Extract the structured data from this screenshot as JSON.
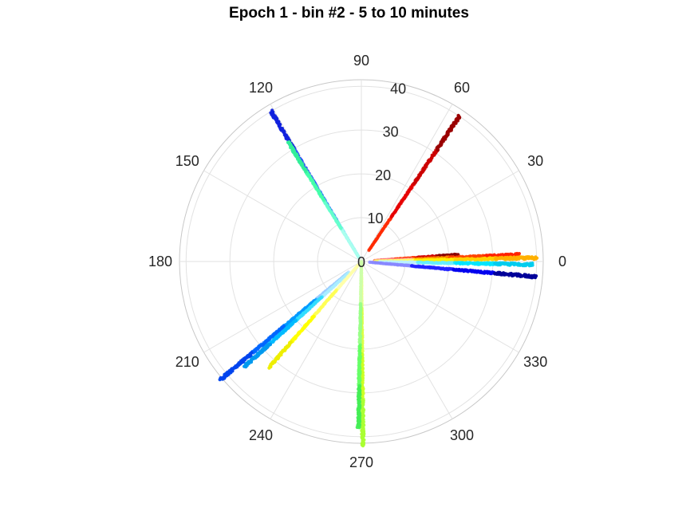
{
  "chart_data": {
    "type": "scatter",
    "coordinate_system": "polar",
    "title": "Epoch 1 - bin #2 - 5 to 10 minutes",
    "theta_ticks": [
      "0",
      "30",
      "60",
      "90",
      "120",
      "150",
      "180",
      "210",
      "240",
      "270",
      "300",
      "330"
    ],
    "r_ticks": [
      "0",
      "10",
      "20",
      "30",
      "40"
    ],
    "r_lim": [
      0,
      40
    ],
    "theta_unit": "degrees",
    "grid": true,
    "colormap": "jet",
    "series": [
      {
        "theta": 56,
        "r_range": [
          3,
          40
        ],
        "color": "#cc0000",
        "colors": [
          "#ff2a00",
          "#e60000",
          "#cc0000",
          "#9a0000"
        ]
      },
      {
        "theta": 4,
        "r_range": [
          3,
          22
        ],
        "color": "#ff2000",
        "colors": [
          "#ff6666",
          "#ff3300",
          "#d00000",
          "#8a0000"
        ]
      },
      {
        "theta": 2.5,
        "r_range": [
          4,
          36
        ],
        "color": "#ff5500",
        "colors": [
          "#ff9999",
          "#ff8800",
          "#ff4400",
          "#ff2200"
        ]
      },
      {
        "theta": 1.2,
        "r_range": [
          3,
          40
        ],
        "color": "#ffe000",
        "colors": [
          "#ffff66",
          "#fff000",
          "#ffd000",
          "#ffb000"
        ]
      },
      {
        "theta": -1,
        "r_range": [
          4,
          39
        ],
        "color": "#00e5ff",
        "colors": [
          "#bbf0ff",
          "#66eeff",
          "#00e5ff",
          "#00ccee"
        ]
      },
      {
        "theta": -5,
        "r_range": [
          2,
          40
        ],
        "color": "#0000ee",
        "colors": [
          "#8888ff",
          "#2222ff",
          "#0000ee",
          "#000099"
        ]
      },
      {
        "theta": 121,
        "r_range": [
          1,
          40
        ],
        "color": "#1a33ff",
        "colors": [
          "#66ddff",
          "#3377ff",
          "#2244ff",
          "#1122dd"
        ]
      },
      {
        "theta": 121.5,
        "r_range": [
          1,
          32
        ],
        "color": "#44ffaa",
        "colors": [
          "#aaffee",
          "#66ffcc",
          "#44ffaa",
          "#33ee99"
        ]
      },
      {
        "theta": 220,
        "r_range": [
          4,
          42
        ],
        "color": "#0077ff",
        "colors": [
          "#99ccff",
          "#0099ff",
          "#0066ff",
          "#0044ee"
        ]
      },
      {
        "theta": 222,
        "r_range": [
          4,
          36
        ],
        "color": "#00ccff",
        "colors": [
          "#aaeeff",
          "#33ddff",
          "#00bbff",
          "#0099ee"
        ]
      },
      {
        "theta": 229,
        "r_range": [
          1,
          32
        ],
        "color": "#ffff00",
        "colors": [
          "#ffffaa",
          "#ffff55",
          "#ffff00",
          "#eeee00"
        ]
      },
      {
        "theta": 270.5,
        "r_range": [
          0,
          42
        ],
        "color": "#ccff33",
        "colors": [
          "#eeff88",
          "#ddff44",
          "#ccff22",
          "#aaff33"
        ]
      },
      {
        "theta": 269,
        "r_range": [
          0,
          38
        ],
        "color": "#66ff66",
        "colors": [
          "#ccffaa",
          "#99ff88",
          "#66ff66",
          "#44ee55"
        ]
      }
    ]
  }
}
